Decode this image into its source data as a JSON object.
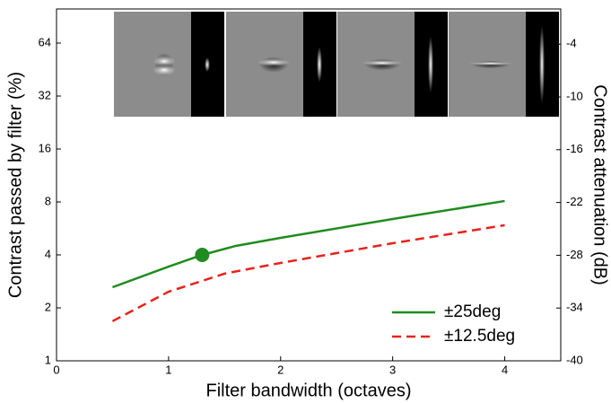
{
  "chart_data": {
    "type": "line",
    "xlabel": "Filter bandwidth (octaves)",
    "ylabel": "Contrast passed by filter (%)",
    "y2label": "Contrast attenuation (dB)",
    "xlim": [
      0,
      4.5
    ],
    "xticks": [
      0,
      1,
      2,
      3,
      4
    ],
    "ylim": [
      1,
      100
    ],
    "yscale": "log",
    "yticks": [
      1,
      2,
      4,
      8,
      16,
      32,
      64
    ],
    "y2lim": [
      -40,
      0
    ],
    "y2ticks": [
      -40,
      -34,
      -28,
      -22,
      -16,
      -10,
      -4
    ],
    "legend": "lower right",
    "series": [
      {
        "name": "±25deg",
        "color": "#1f8c1f",
        "linestyle": "solid",
        "x": [
          0.5,
          1,
          1.3,
          1.6,
          2,
          3,
          4
        ],
        "values": [
          2.62,
          3.43,
          4,
          4.5,
          5.0,
          6.4,
          8.1
        ]
      },
      {
        "name": "±12.5deg",
        "color": "#e8221c",
        "linestyle": "dashed",
        "x": [
          0.5,
          1,
          1.5,
          2,
          3,
          4
        ],
        "values": [
          1.68,
          2.47,
          3.13,
          3.6,
          4.66,
          5.9
        ]
      }
    ],
    "highlight": {
      "x": 1.3,
      "y": 4,
      "color": "#1f8c1f"
    }
  }
}
